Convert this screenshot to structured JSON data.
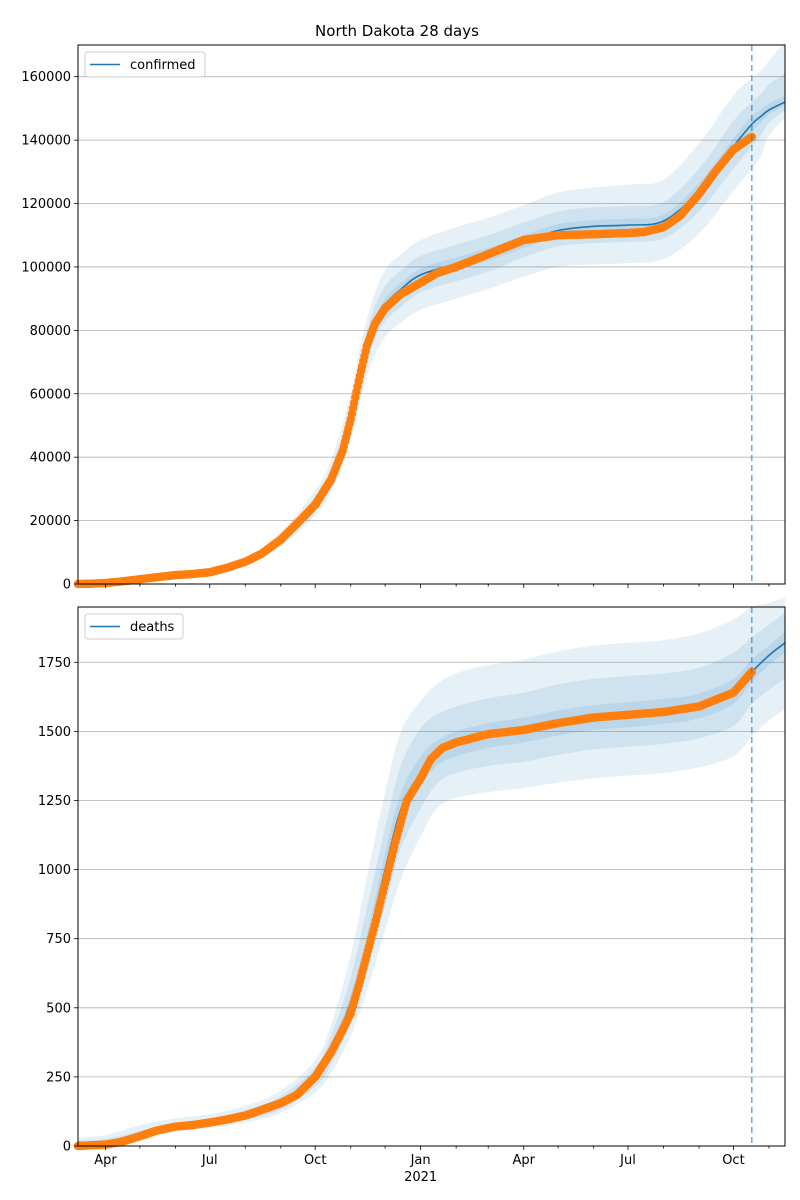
{
  "chart_data": [
    {
      "type": "line",
      "title": "North Dakota 28 days",
      "legend": {
        "position": "top-left",
        "entries": [
          "confirmed"
        ]
      },
      "grid": {
        "y": true,
        "x": false
      },
      "ylim": [
        0,
        170000
      ],
      "yticks": [
        0,
        20000,
        40000,
        60000,
        80000,
        100000,
        120000,
        140000,
        160000
      ],
      "ytick_labels": [
        "0",
        "20000",
        "40000",
        "60000",
        "80000",
        "100000",
        "120000",
        "140000",
        "160000"
      ],
      "forecast_start": "2021-10-17",
      "observed": {
        "x": [
          "2020-03-08",
          "2020-03-20",
          "2020-04-01",
          "2020-04-15",
          "2020-05-01",
          "2020-05-15",
          "2020-06-01",
          "2020-06-15",
          "2020-07-01",
          "2020-07-15",
          "2020-08-01",
          "2020-08-15",
          "2020-09-01",
          "2020-09-15",
          "2020-10-01",
          "2020-10-15",
          "2020-10-25",
          "2020-11-01",
          "2020-11-08",
          "2020-11-15",
          "2020-11-22",
          "2020-12-01",
          "2020-12-15",
          "2021-01-01",
          "2021-01-15",
          "2021-02-01",
          "2021-03-01",
          "2021-04-01",
          "2021-05-01",
          "2021-06-01",
          "2021-07-01",
          "2021-07-15",
          "2021-08-01",
          "2021-08-15",
          "2021-09-01",
          "2021-09-15",
          "2021-10-01",
          "2021-10-17"
        ],
        "values": [
          0,
          100,
          300,
          800,
          1500,
          2100,
          2800,
          3100,
          3700,
          5000,
          7000,
          9500,
          14000,
          19000,
          25000,
          33000,
          42000,
          52000,
          64000,
          75000,
          82000,
          87000,
          91500,
          95000,
          98000,
          100000,
          104000,
          108500,
          110000,
          110300,
          110700,
          111000,
          112500,
          116000,
          123000,
          130000,
          137000,
          141000
        ]
      },
      "model": {
        "x": [
          "2020-03-08",
          "2020-06-01",
          "2020-08-01",
          "2020-09-01",
          "2020-10-01",
          "2020-10-15",
          "2020-11-01",
          "2020-11-10",
          "2020-11-20",
          "2020-12-01",
          "2020-12-15",
          "2021-01-01",
          "2021-02-01",
          "2021-03-01",
          "2021-04-01",
          "2021-05-01",
          "2021-06-01",
          "2021-07-01",
          "2021-08-01",
          "2021-09-01",
          "2021-10-01",
          "2021-10-17",
          "2021-10-25",
          "2021-11-01",
          "2021-11-15"
        ],
        "values": [
          0,
          2800,
          7000,
          14000,
          25000,
          33500,
          52000,
          67000,
          80000,
          88000,
          93000,
          97500,
          101000,
          104000,
          108000,
          111500,
          112800,
          113200,
          114500,
          124000,
          138000,
          145000,
          147500,
          149500,
          152000
        ],
        "bands": [
          {
            "lower": [
              0,
              2300,
              6000,
              12000,
              21500,
              29000,
              46000,
              59000,
              70500,
              78000,
              82500,
              86500,
              90000,
              93000,
              97000,
              100000,
              100800,
              101200,
              102500,
              110500,
              124000,
              131000,
              135000,
              141500,
              147000
            ],
            "upper": [
              0,
              3300,
              8200,
              16500,
              29500,
              39000,
              60000,
              76000,
              89500,
              99000,
              104000,
              108500,
              112500,
              115500,
              119500,
              123500,
              125000,
              126000,
              127500,
              139000,
              154000,
              159500,
              162000,
              165000,
              171000
            ]
          },
          {
            "lower": [
              0,
              2500,
              6400,
              12800,
              23000,
              31000,
              49000,
              63000,
              75500,
              83000,
              87500,
              92000,
              95500,
              98500,
              103000,
              106500,
              107500,
              107900,
              109000,
              117500,
              131000,
              138000,
              141500,
              145500,
              149500
            ],
            "upper": [
              0,
              3100,
              7700,
              15400,
              27500,
              36500,
              56000,
              72000,
              85500,
              94000,
              99000,
              103500,
              107000,
              110000,
              114000,
              117500,
              118800,
              119200,
              120500,
              131000,
              146000,
              152000,
              154500,
              157500,
              161000
            ]
          },
          {
            "lower": [
              0,
              2700,
              6800,
              13500,
              24300,
              32500,
              50500,
              65000,
              78000,
              86000,
              91000,
              95500,
              99000,
              102000,
              106000,
              109500,
              110800,
              111200,
              112500,
              121500,
              135500,
              142500,
              145500,
              148000,
              151000
            ],
            "upper": [
              0,
              2900,
              7200,
              14500,
              25700,
              34500,
              53500,
              69000,
              82000,
              90000,
              95000,
              99500,
              103000,
              106000,
              110000,
              113500,
              114800,
              115200,
              116500,
              126500,
              140500,
              147500,
              149500,
              151500,
              154000
            ]
          }
        ]
      }
    },
    {
      "type": "line",
      "title": "",
      "xlabel": "",
      "legend": {
        "position": "top-left",
        "entries": [
          "deaths"
        ]
      },
      "grid": {
        "y": true,
        "x": false
      },
      "ylim": [
        0,
        1950
      ],
      "yticks": [
        0,
        250,
        500,
        750,
        1000,
        1250,
        1500,
        1750
      ],
      "ytick_labels": [
        "0",
        "250",
        "500",
        "750",
        "1000",
        "1250",
        "1500",
        "1750"
      ],
      "xticks": [
        "2020-04-01",
        "2020-07-01",
        "2020-10-01",
        "2021-01-01",
        "2021-04-01",
        "2021-07-01",
        "2021-10-01"
      ],
      "xtick_labels": [
        "Apr",
        "Jul",
        "Oct",
        "Jan",
        "Apr",
        "Jul",
        "Oct"
      ],
      "xtick_year_labels": [
        "",
        "",
        "",
        "2021",
        "",
        "",
        ""
      ],
      "xlim": [
        "2020-03-08",
        "2021-11-15"
      ],
      "forecast_start": "2021-10-17",
      "observed": {
        "x": [
          "2020-03-08",
          "2020-04-01",
          "2020-04-15",
          "2020-05-01",
          "2020-05-15",
          "2020-06-01",
          "2020-06-15",
          "2020-07-01",
          "2020-07-15",
          "2020-08-01",
          "2020-08-15",
          "2020-09-01",
          "2020-09-15",
          "2020-10-01",
          "2020-10-15",
          "2020-10-25",
          "2020-11-01",
          "2020-11-08",
          "2020-11-15",
          "2020-11-22",
          "2020-12-01",
          "2020-12-10",
          "2020-12-20",
          "2021-01-01",
          "2021-01-10",
          "2021-01-20",
          "2021-02-01",
          "2021-03-01",
          "2021-04-01",
          "2021-05-01",
          "2021-06-01",
          "2021-07-01",
          "2021-08-01",
          "2021-09-01",
          "2021-10-01",
          "2021-10-17"
        ],
        "values": [
          0,
          5,
          15,
          35,
          55,
          70,
          75,
          85,
          95,
          110,
          130,
          155,
          185,
          250,
          340,
          420,
          480,
          580,
          690,
          800,
          950,
          1100,
          1250,
          1330,
          1400,
          1440,
          1460,
          1490,
          1505,
          1530,
          1550,
          1560,
          1570,
          1590,
          1640,
          1715
        ]
      },
      "model": {
        "x": [
          "2020-03-08",
          "2020-04-01",
          "2020-05-01",
          "2020-06-01",
          "2020-07-01",
          "2020-08-01",
          "2020-09-01",
          "2020-10-01",
          "2020-10-15",
          "2020-11-01",
          "2020-11-15",
          "2020-12-01",
          "2020-12-15",
          "2021-01-01",
          "2021-01-15",
          "2021-02-01",
          "2021-03-01",
          "2021-04-01",
          "2021-05-01",
          "2021-06-01",
          "2021-07-01",
          "2021-08-01",
          "2021-09-01",
          "2021-10-01",
          "2021-10-17",
          "2021-11-01",
          "2021-11-15"
        ],
        "values": [
          0,
          6,
          35,
          70,
          85,
          110,
          155,
          250,
          345,
          520,
          720,
          1000,
          1220,
          1350,
          1420,
          1455,
          1485,
          1505,
          1530,
          1550,
          1560,
          1572,
          1592,
          1645,
          1715,
          1775,
          1820
        ],
        "bands": [
          {
            "lower": [
              0,
              0,
              25,
              55,
              65,
              85,
              120,
              195,
              265,
              400,
              560,
              780,
              970,
              1120,
              1220,
              1260,
              1280,
              1295,
              1315,
              1330,
              1340,
              1350,
              1370,
              1410,
              1480,
              1540,
              1580
            ],
            "upper": [
              30,
              40,
              75,
              100,
              115,
              145,
              200,
              310,
              440,
              690,
              970,
              1280,
              1500,
              1610,
              1670,
              1710,
              1740,
              1760,
              1790,
              1810,
              1820,
              1830,
              1855,
              1905,
              1950,
              1965,
              1985
            ]
          },
          {
            "lower": [
              0,
              2,
              28,
              60,
              72,
              95,
              132,
              215,
              295,
              450,
              630,
              870,
              1080,
              1220,
              1310,
              1350,
              1375,
              1390,
              1415,
              1435,
              1445,
              1455,
              1475,
              1520,
              1600,
              1650,
              1690
            ],
            "upper": [
              20,
              25,
              55,
              85,
              100,
              130,
              180,
              285,
              400,
              610,
              860,
              1150,
              1380,
              1510,
              1560,
              1590,
              1620,
              1640,
              1670,
              1690,
              1700,
              1710,
              1730,
              1785,
              1840,
              1885,
              1930
            ]
          },
          {
            "lower": [
              0,
              4,
              31,
              65,
              78,
              103,
              145,
              235,
              325,
              490,
              680,
              950,
              1170,
              1300,
              1375,
              1410,
              1440,
              1460,
              1485,
              1505,
              1515,
              1527,
              1547,
              1600,
              1680,
              1740,
              1785
            ],
            "upper": [
              10,
              10,
              42,
              76,
              92,
              118,
              166,
              265,
              365,
              550,
              760,
              1060,
              1280,
              1410,
              1465,
              1500,
              1530,
              1550,
              1575,
              1595,
              1605,
              1617,
              1637,
              1690,
              1760,
              1810,
              1860
            ]
          }
        ]
      }
    }
  ]
}
